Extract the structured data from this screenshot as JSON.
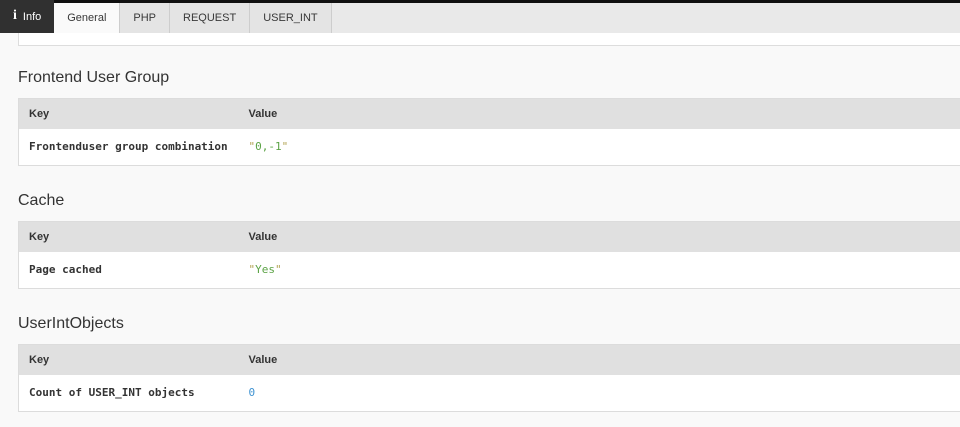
{
  "topbar": {
    "module": {
      "label": "Info",
      "icon": "info-icon",
      "icon_glyph": "i"
    },
    "tabs": [
      {
        "label": "General",
        "active": true
      },
      {
        "label": "PHP",
        "active": false
      },
      {
        "label": "REQUEST",
        "active": false
      },
      {
        "label": "USER_INT",
        "active": false
      }
    ]
  },
  "sections": [
    {
      "title": "Frontend User Group",
      "columns": [
        "Key",
        "Value"
      ],
      "rows": [
        {
          "key": "Frontenduser group combination",
          "value": "0,-1",
          "quote": "\"",
          "type": "string"
        }
      ]
    },
    {
      "title": "Cache",
      "columns": [
        "Key",
        "Value"
      ],
      "rows": [
        {
          "key": "Page cached",
          "value": "Yes",
          "quote": "\"",
          "type": "string"
        }
      ]
    },
    {
      "title": "UserIntObjects",
      "columns": [
        "Key",
        "Value"
      ],
      "rows": [
        {
          "key": "Count of USER_INT objects",
          "value": "0",
          "quote": "",
          "type": "number"
        }
      ]
    }
  ],
  "colors": {
    "string_value": "#5ba345",
    "string_quote": "#b0a14f",
    "number_value": "#3f93d2",
    "tab_bar_bg": "#e9e9e9",
    "module_tab_bg": "#303030",
    "table_header_bg": "#e0e0e0"
  }
}
